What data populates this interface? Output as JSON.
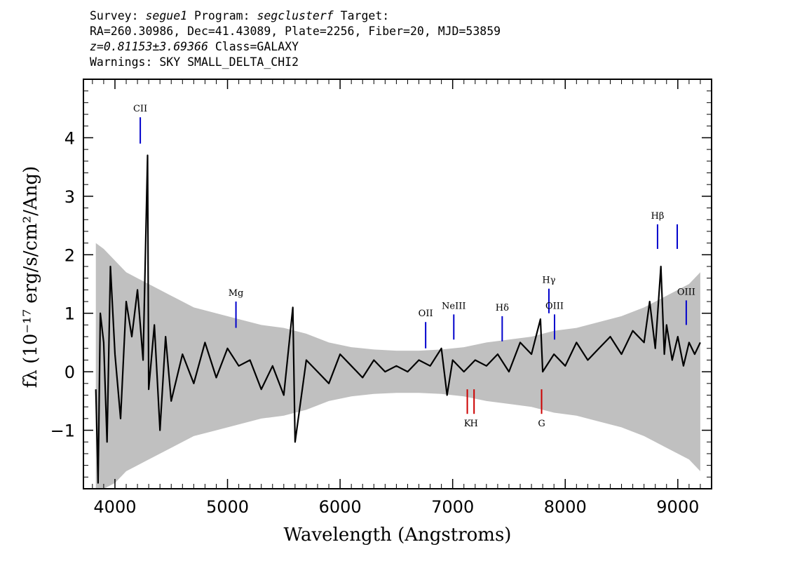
{
  "header": {
    "survey_prefix": "Survey: ",
    "survey": "segue1",
    "program_prefix": " Program: ",
    "program": "segclusterf",
    "target_suffix": " Target:",
    "line2": "RA=260.30986, Dec=41.43089, Plate=2256, Fiber=20, MJD=53859",
    "redshift": "z=0.81153±3.69366",
    "class_text": " Class=GALAXY",
    "warnings": "Warnings: SKY SMALL_DELTA_CHI2"
  },
  "chart_data": {
    "type": "line",
    "title": "",
    "xlabel": "Wavelength (Angstroms)",
    "ylabel": "fλ (10⁻¹⁷ erg/s/cm²/Ang)",
    "xlim": [
      3720,
      9300
    ],
    "ylim": [
      -2.0,
      5.0
    ],
    "x_ticks": [
      4000,
      5000,
      6000,
      7000,
      8000,
      9000
    ],
    "x_tick_labels": [
      "4000",
      "5000",
      "6000",
      "7000",
      "8000",
      "9000"
    ],
    "y_ticks": [
      -1,
      0,
      1,
      2,
      3,
      4
    ],
    "y_tick_labels": [
      "−1",
      "0",
      "1",
      "2",
      "3",
      "4"
    ],
    "grid": false,
    "series": [
      {
        "role": "noise",
        "color": "#c0c0c0",
        "x": [
          3830,
          3900,
          4000,
          4100,
          4200,
          4300,
          4500,
          4700,
          4900,
          5100,
          5300,
          5500,
          5700,
          5900,
          6100,
          6300,
          6500,
          6700,
          6900,
          7100,
          7300,
          7500,
          7700,
          7900,
          8100,
          8300,
          8500,
          8700,
          8900,
          9100,
          9200
        ],
        "y": [
          2.2,
          2.1,
          1.9,
          1.7,
          1.6,
          1.5,
          1.3,
          1.1,
          1.0,
          0.9,
          0.8,
          0.75,
          0.65,
          0.5,
          0.42,
          0.38,
          0.36,
          0.36,
          0.38,
          0.42,
          0.5,
          0.55,
          0.6,
          0.7,
          0.75,
          0.85,
          0.95,
          1.1,
          1.3,
          1.5,
          1.7
        ]
      },
      {
        "role": "flux",
        "color": "#000000",
        "x": [
          3830,
          3850,
          3870,
          3900,
          3930,
          3960,
          4000,
          4050,
          4100,
          4150,
          4200,
          4250,
          4290,
          4300,
          4350,
          4400,
          4450,
          4500,
          4600,
          4700,
          4800,
          4900,
          5000,
          5100,
          5200,
          5300,
          5400,
          5500,
          5580,
          5600,
          5700,
          5800,
          5900,
          6000,
          6100,
          6200,
          6300,
          6400,
          6500,
          6600,
          6700,
          6800,
          6900,
          6950,
          7000,
          7100,
          7200,
          7300,
          7400,
          7500,
          7600,
          7700,
          7780,
          7800,
          7900,
          8000,
          8100,
          8200,
          8300,
          8400,
          8500,
          8600,
          8700,
          8750,
          8800,
          8850,
          8880,
          8900,
          8950,
          9000,
          9050,
          9100,
          9150,
          9200
        ],
        "y": [
          -0.3,
          -1.9,
          1.0,
          0.5,
          -1.2,
          1.8,
          0.3,
          -0.8,
          1.2,
          0.6,
          1.4,
          0.2,
          3.7,
          -0.3,
          0.8,
          -1.0,
          0.6,
          -0.5,
          0.3,
          -0.2,
          0.5,
          -0.1,
          0.4,
          0.1,
          0.2,
          -0.3,
          0.1,
          -0.4,
          1.1,
          -1.2,
          0.2,
          0.0,
          -0.2,
          0.3,
          0.1,
          -0.1,
          0.2,
          0.0,
          0.1,
          0.0,
          0.2,
          0.1,
          0.4,
          -0.4,
          0.2,
          0.0,
          0.2,
          0.1,
          0.3,
          0.0,
          0.5,
          0.3,
          0.9,
          0.0,
          0.3,
          0.1,
          0.5,
          0.2,
          0.4,
          0.6,
          0.3,
          0.7,
          0.5,
          1.2,
          0.4,
          1.8,
          0.3,
          0.8,
          0.2,
          0.6,
          0.1,
          0.5,
          0.3,
          0.5
        ]
      }
    ],
    "emission_lines": [
      {
        "label": "CII",
        "x": 4225,
        "y0": 3.9,
        "y1": 4.35,
        "color": "#0000cc"
      },
      {
        "label": "Mg",
        "x": 5075,
        "y0": 0.75,
        "y1": 1.2,
        "color": "#0000cc"
      },
      {
        "label": "OII",
        "x": 6760,
        "y0": 0.4,
        "y1": 0.85,
        "color": "#0000cc"
      },
      {
        "label": "NeIII",
        "x": 7010,
        "y0": 0.55,
        "y1": 0.98,
        "color": "#0000cc"
      },
      {
        "label": "Hδ",
        "x": 7440,
        "y0": 0.52,
        "y1": 0.95,
        "color": "#0000cc"
      },
      {
        "label": "Hγ",
        "x": 7855,
        "y0": 1.0,
        "y1": 1.42,
        "color": "#0000cc"
      },
      {
        "label": "OIII",
        "x": 7905,
        "y0": 0.55,
        "y1": 0.98,
        "color": "#0000cc"
      },
      {
        "label": "Hβ",
        "x": 8820,
        "y0": 2.1,
        "y1": 2.52,
        "color": "#0000cc"
      },
      {
        "label": "",
        "x": 8995,
        "y0": 2.1,
        "y1": 2.52,
        "color": "#0000cc"
      },
      {
        "label": "OIII",
        "x": 9075,
        "y0": 0.8,
        "y1": 1.22,
        "color": "#0000cc"
      }
    ],
    "absorption_lines": [
      {
        "label": "K",
        "x": 7130,
        "y0": -0.72,
        "y1": -0.3,
        "color": "#cc0000"
      },
      {
        "label": "H",
        "x": 7190,
        "y0": -0.72,
        "y1": -0.3,
        "color": "#cc0000"
      },
      {
        "label": "G",
        "x": 7790,
        "y0": -0.72,
        "y1": -0.3,
        "color": "#cc0000"
      }
    ]
  }
}
